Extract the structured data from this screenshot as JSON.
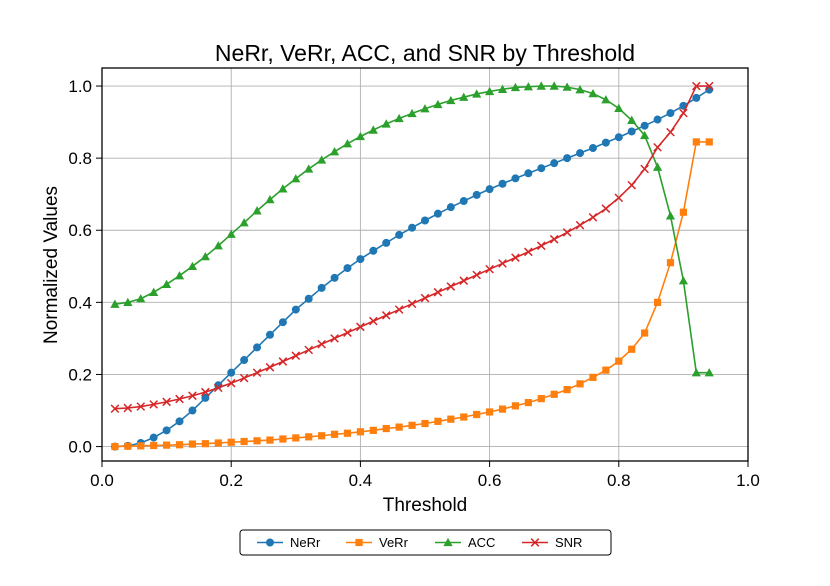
{
  "chart_data": {
    "type": "line",
    "title": "NeRr, VeRr, ACC, and SNR by Threshold",
    "xlabel": "Threshold",
    "ylabel": "Normalized Values",
    "xlim": [
      0.0,
      1.0
    ],
    "ylim": [
      -0.04,
      1.05
    ],
    "xticks": [
      0.0,
      0.2,
      0.4,
      0.6,
      0.8,
      1.0
    ],
    "xtick_labels": [
      "0.0",
      "0.2",
      "0.4",
      "0.6",
      "0.8",
      "1.0"
    ],
    "yticks": [
      0.0,
      0.2,
      0.4,
      0.6,
      0.8,
      1.0
    ],
    "ytick_labels": [
      "0.0",
      "0.2",
      "0.4",
      "0.6",
      "0.8",
      "1.0"
    ],
    "grid": true,
    "legend_position": "below-center",
    "x": [
      0.02,
      0.04,
      0.06,
      0.08,
      0.1,
      0.12,
      0.14,
      0.16,
      0.18,
      0.2,
      0.22,
      0.24,
      0.26,
      0.28,
      0.3,
      0.32,
      0.34,
      0.36,
      0.38,
      0.4,
      0.42,
      0.44,
      0.46,
      0.48,
      0.5,
      0.52,
      0.54,
      0.56,
      0.58,
      0.6,
      0.62,
      0.64,
      0.66,
      0.68,
      0.7,
      0.72,
      0.74,
      0.76,
      0.78,
      0.8,
      0.82,
      0.84,
      0.86,
      0.88,
      0.9,
      0.92,
      0.94
    ],
    "series": [
      {
        "name": "NeRr",
        "color": "#1f77b4",
        "marker": "circle",
        "values": [
          0.0,
          0.002,
          0.01,
          0.025,
          0.045,
          0.07,
          0.1,
          0.135,
          0.17,
          0.205,
          0.24,
          0.275,
          0.31,
          0.345,
          0.38,
          0.41,
          0.44,
          0.468,
          0.495,
          0.52,
          0.543,
          0.565,
          0.587,
          0.607,
          0.627,
          0.646,
          0.664,
          0.681,
          0.698,
          0.714,
          0.729,
          0.744,
          0.758,
          0.772,
          0.786,
          0.8,
          0.814,
          0.828,
          0.843,
          0.858,
          0.874,
          0.89,
          0.907,
          0.925,
          0.945,
          0.967,
          0.99
        ]
      },
      {
        "name": "VeRr",
        "color": "#ff7f0e",
        "marker": "square",
        "values": [
          0.0,
          0.001,
          0.002,
          0.003,
          0.004,
          0.005,
          0.007,
          0.008,
          0.01,
          0.012,
          0.014,
          0.016,
          0.018,
          0.021,
          0.024,
          0.027,
          0.03,
          0.034,
          0.037,
          0.041,
          0.045,
          0.05,
          0.054,
          0.059,
          0.064,
          0.07,
          0.076,
          0.082,
          0.089,
          0.096,
          0.104,
          0.113,
          0.122,
          0.133,
          0.145,
          0.158,
          0.174,
          0.192,
          0.212,
          0.237,
          0.27,
          0.315,
          0.4,
          0.51,
          0.65,
          0.845,
          0.845
        ]
      },
      {
        "name": "ACC",
        "color": "#2ca02c",
        "marker": "triangle",
        "values": [
          0.395,
          0.4,
          0.41,
          0.428,
          0.45,
          0.474,
          0.5,
          0.527,
          0.557,
          0.589,
          0.621,
          0.654,
          0.685,
          0.715,
          0.743,
          0.77,
          0.795,
          0.818,
          0.84,
          0.86,
          0.878,
          0.895,
          0.91,
          0.924,
          0.937,
          0.949,
          0.96,
          0.969,
          0.978,
          0.985,
          0.991,
          0.996,
          0.998,
          1.0,
          1.0,
          0.997,
          0.99,
          0.979,
          0.962,
          0.938,
          0.905,
          0.863,
          0.775,
          0.64,
          0.46,
          0.205,
          0.205
        ]
      },
      {
        "name": "SNR",
        "color": "#d62728",
        "marker": "x",
        "values": [
          0.105,
          0.107,
          0.111,
          0.117,
          0.124,
          0.132,
          0.141,
          0.151,
          0.163,
          0.176,
          0.19,
          0.205,
          0.22,
          0.236,
          0.252,
          0.268,
          0.284,
          0.3,
          0.316,
          0.332,
          0.348,
          0.364,
          0.38,
          0.396,
          0.412,
          0.428,
          0.444,
          0.46,
          0.476,
          0.492,
          0.508,
          0.524,
          0.54,
          0.557,
          0.575,
          0.594,
          0.614,
          0.636,
          0.66,
          0.69,
          0.725,
          0.77,
          0.83,
          0.872,
          0.925,
          1.0,
          1.0
        ]
      }
    ]
  }
}
